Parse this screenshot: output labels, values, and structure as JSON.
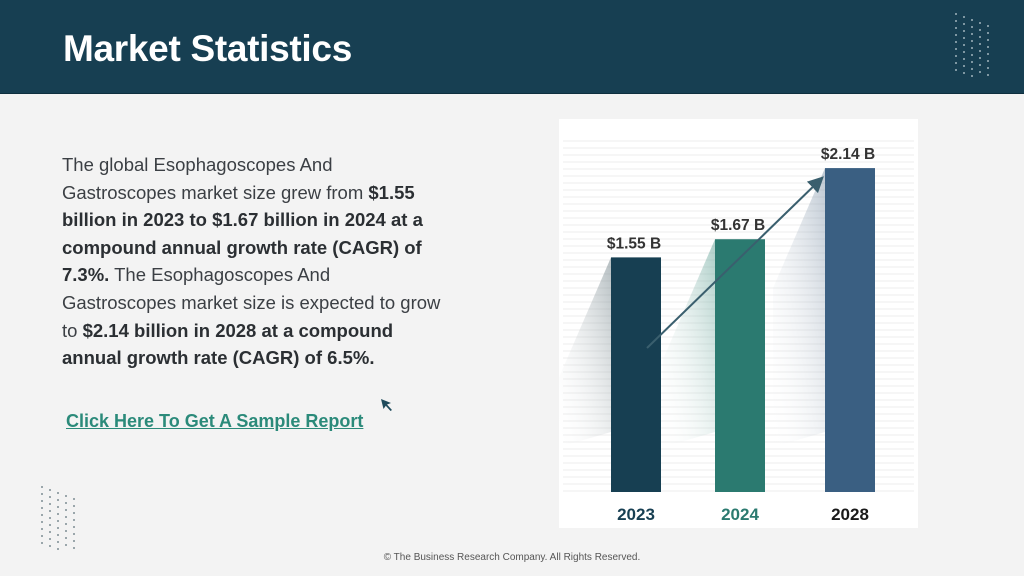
{
  "header": {
    "title": "Market Statistics"
  },
  "body": {
    "p1": "The global Esophagoscopes And Gastroscopes market size grew from ",
    "b1": "$1.55 billion in 2023 to $1.67 billion in 2024 at a compound annual growth rate (CAGR) of 7.3%.",
    "p2": " The Esophagoscopes And Gastroscopes market size is expected to grow to ",
    "b2": "$2.14 billion in 2028 at a compound annual growth rate (CAGR) of 6.5%."
  },
  "cta": {
    "label": "Click Here To Get A Sample Report"
  },
  "footer": {
    "text": "© The Business Research Company. All Rights Reserved."
  },
  "colors": {
    "header_bg": "#173f52",
    "bar_2023": "#173f52",
    "bar_2024": "#2b7a70",
    "bar_2028": "#3a5f82",
    "cta": "#2b8a7a"
  },
  "chart_data": {
    "type": "bar",
    "categories": [
      "2023",
      "2024",
      "2028"
    ],
    "values": [
      1.55,
      1.67,
      2.14
    ],
    "value_labels": [
      "$1.55 B",
      "$1.67 B",
      "$2.14 B"
    ],
    "title": "",
    "xlabel": "",
    "ylabel": "",
    "grid": true,
    "trend_arrow": true
  }
}
